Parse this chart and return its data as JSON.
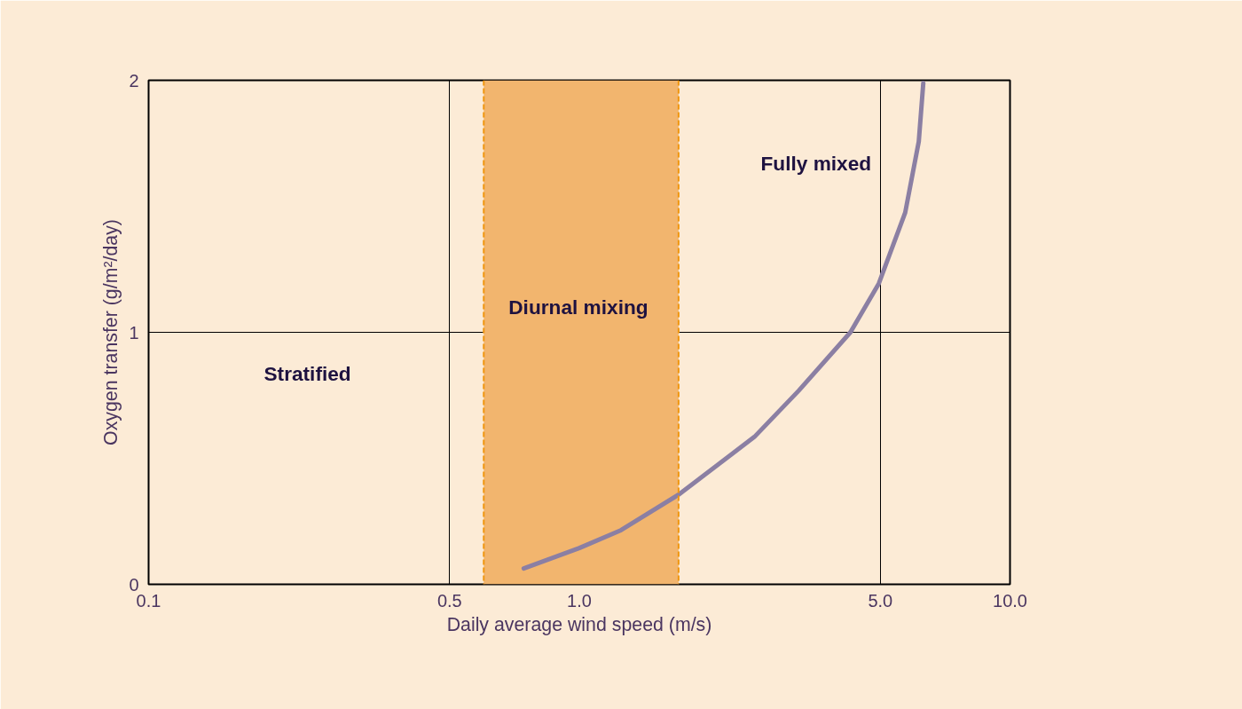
{
  "chart_data": {
    "type": "line",
    "xlabel": "Daily average wind speed (m/s)",
    "ylabel": "Oxygen transfer (g/m²/day)",
    "log": "x",
    "grid": true,
    "marker": "none",
    "line_style": "solid",
    "xlim": [
      0.1,
      10
    ],
    "ylim": [
      0,
      2
    ],
    "xticks": [
      0.1,
      0.5,
      {
        "value": 1,
        "label": "1.0"
      },
      {
        "value": 5,
        "label": "5.0"
      },
      {
        "value": 10,
        "label": "10.0"
      }
    ],
    "yticks": [
      0,
      1,
      2
    ],
    "series": [
      {
        "color": "#8b7fa3",
        "x": [
          0.743,
          1.0,
          1.25,
          1.7,
          2.55,
          3.23,
          4.26,
          4.96,
          5.71,
          6.14,
          6.29
        ],
        "values": [
          0.063,
          0.144,
          0.215,
          0.356,
          0.585,
          0.768,
          1.0,
          1.194,
          1.475,
          1.757,
          1.989
        ]
      }
    ],
    "bands": [
      {
        "axis": "x",
        "from": 0.6,
        "to": 1.7,
        "label": "Diurnal  mixing",
        "color": "#f2b56e"
      }
    ],
    "ref_lines": [
      {
        "axis": "x",
        "value": 0.6,
        "color": "#f0960f",
        "line_style": "dashed"
      },
      {
        "axis": "x",
        "value": 1.7,
        "color": "#f0960f",
        "line_style": "dashed"
      }
    ],
    "annotations": [
      "Stratified",
      "Fully mixed"
    ]
  }
}
